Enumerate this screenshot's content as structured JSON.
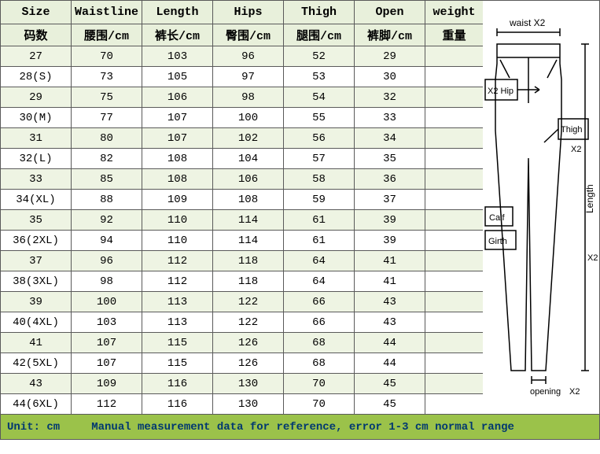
{
  "colors": {
    "header_bg": "#e8f0db",
    "row_even_bg": "#eef4e3",
    "row_odd_bg": "#ffffff",
    "footer_bg": "#9bc24a",
    "footer_text": "#003870",
    "border": "#5a5a5a"
  },
  "headers_en": [
    "Size",
    "Waistline",
    "Length",
    "Hips",
    "Thigh",
    "Open",
    "weight"
  ],
  "headers_cn": [
    "码数",
    "腰围/cm",
    "裤长/cm",
    "臀围/cm",
    "腿围/cm",
    "裤脚/cm",
    "重量"
  ],
  "rows": [
    [
      "27",
      "70",
      "103",
      "96",
      "52",
      "29",
      ""
    ],
    [
      "28(S)",
      "73",
      "105",
      "97",
      "53",
      "30",
      ""
    ],
    [
      "29",
      "75",
      "106",
      "98",
      "54",
      "32",
      ""
    ],
    [
      "30(M)",
      "77",
      "107",
      "100",
      "55",
      "33",
      ""
    ],
    [
      "31",
      "80",
      "107",
      "102",
      "56",
      "34",
      ""
    ],
    [
      "32(L)",
      "82",
      "108",
      "104",
      "57",
      "35",
      ""
    ],
    [
      "33",
      "85",
      "108",
      "106",
      "58",
      "36",
      ""
    ],
    [
      "34(XL)",
      "88",
      "109",
      "108",
      "59",
      "37",
      ""
    ],
    [
      "35",
      "92",
      "110",
      "114",
      "61",
      "39",
      ""
    ],
    [
      "36(2XL)",
      "94",
      "110",
      "114",
      "61",
      "39",
      ""
    ],
    [
      "37",
      "96",
      "112",
      "118",
      "64",
      "41",
      ""
    ],
    [
      "38(3XL)",
      "98",
      "112",
      "118",
      "64",
      "41",
      ""
    ],
    [
      "39",
      "100",
      "113",
      "122",
      "66",
      "43",
      ""
    ],
    [
      "40(4XL)",
      "103",
      "113",
      "122",
      "66",
      "43",
      ""
    ],
    [
      "41",
      "107",
      "115",
      "126",
      "68",
      "44",
      ""
    ],
    [
      "42(5XL)",
      "107",
      "115",
      "126",
      "68",
      "44",
      ""
    ],
    [
      "43",
      "109",
      "116",
      "130",
      "70",
      "45",
      ""
    ],
    [
      "44(6XL)",
      "112",
      "116",
      "130",
      "70",
      "45",
      ""
    ]
  ],
  "footer": {
    "unit": "Unit: cm",
    "note": "Manual measurement data for reference, error 1-3 cm normal range"
  },
  "diagram": {
    "labels": {
      "waist": "waist X2",
      "hip": "X2 Hip",
      "thigh": "Thigh",
      "thigh_x2": "X2",
      "calf": "Calf",
      "girth": "Girth",
      "length": "Length",
      "length_x2": "X2",
      "opening": "opening",
      "opening_x2": "X2"
    },
    "line_color": "#000000",
    "label_fontsize": 11
  }
}
